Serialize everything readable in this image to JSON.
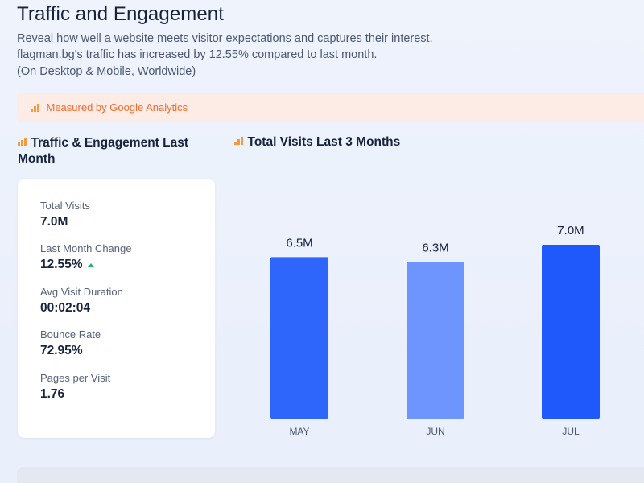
{
  "header": {
    "title": "Traffic and Engagement",
    "description_line1": "Reveal how well a website meets visitor expectations and captures their interest.",
    "description_line2": "flagman.bg's traffic has increased by 12.55% compared to last month.",
    "description_line3": "(On Desktop & Mobile, Worldwide)"
  },
  "banner": {
    "text": "Measured by Google Analytics",
    "icon": "bar-chart-icon"
  },
  "left_section": {
    "title": "Traffic & Engagement Last Month",
    "icon": "bar-chart-icon",
    "stats": [
      {
        "label": "Total Visits",
        "value": "7.0M"
      },
      {
        "label": "Last Month Change",
        "value": "12.55%",
        "trend": "up"
      },
      {
        "label": "Avg Visit Duration",
        "value": "00:02:04"
      },
      {
        "label": "Bounce Rate",
        "value": "72.95%"
      },
      {
        "label": "Pages per Visit",
        "value": "1.76"
      }
    ]
  },
  "right_section": {
    "title": "Total Visits Last 3 Months",
    "icon": "bar-chart-icon"
  },
  "chart_data": {
    "type": "bar",
    "categories": [
      "MAY",
      "JUN",
      "JUL"
    ],
    "values": [
      6.5,
      6.3,
      7.0
    ],
    "value_labels": [
      "6.5M",
      "6.3M",
      "7.0M"
    ],
    "colors": [
      "#2e65fb",
      "#6e95fd",
      "#1f58fb"
    ],
    "title": "",
    "xlabel": "",
    "ylabel": "",
    "ylim": [
      0,
      7.0
    ],
    "grid": false,
    "legend": "none"
  },
  "colors": {
    "accent_orange": "#ec6d2f",
    "banner_bg": "#fdebe6",
    "trend_up": "#21b573",
    "bar_primary": "#2e65fb"
  }
}
